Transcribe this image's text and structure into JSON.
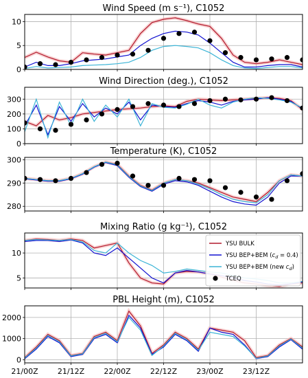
{
  "colors": {
    "bulk": "#b2182b",
    "bep04": "#1010d0",
    "bepnew": "#3bb4d6",
    "obs": "#000000",
    "shade": "#f4b6b6",
    "shade_obs": "#bdbdbd",
    "grid": "#b0b0b0"
  },
  "chart_data": [
    {
      "type": "line",
      "title": "Wind Speed (m s⁻¹), C1052",
      "xticklabels": [
        "21/00Z",
        "21/12Z",
        "22/00Z",
        "22/12Z",
        "23/00Z",
        "23/12Z"
      ],
      "xlim": [
        0,
        72
      ],
      "ylim": [
        0,
        11.5
      ],
      "yticks": [
        0,
        5,
        10
      ],
      "grid": true,
      "x": [
        0,
        3,
        6,
        9,
        12,
        15,
        18,
        21,
        24,
        27,
        30,
        33,
        36,
        39,
        42,
        45,
        48,
        51,
        54,
        57,
        60,
        63,
        66,
        69,
        72
      ],
      "series": [
        {
          "name": "YSU BULK",
          "color_key": "bulk",
          "values": [
            2.5,
            3.6,
            2.6,
            1.8,
            1.5,
            3.5,
            3.2,
            3.0,
            3.5,
            4.0,
            7.5,
            9.8,
            10.5,
            10.8,
            10.2,
            9.5,
            9.0,
            6.5,
            3.0,
            1.5,
            1.2,
            1.5,
            2.0,
            1.5,
            1.0
          ]
        },
        {
          "name": "YSU BEP+BEM (c_d = 0.4)",
          "color_key": "bep04",
          "values": [
            0.5,
            1.5,
            0.8,
            0.8,
            1.2,
            1.8,
            2.0,
            2.2,
            2.6,
            3.0,
            5.0,
            6.5,
            7.5,
            8.0,
            7.8,
            7.2,
            5.5,
            3.5,
            1.5,
            0.5,
            0.5,
            0.8,
            1.0,
            1.0,
            0.5
          ]
        },
        {
          "name": "YSU BEP+BEM (new c_d)",
          "color_key": "bepnew",
          "values": [
            0.2,
            0.6,
            0.3,
            0.4,
            0.5,
            0.8,
            0.9,
            1.0,
            1.2,
            1.5,
            2.5,
            4.0,
            4.8,
            5.0,
            4.8,
            4.5,
            3.5,
            2.0,
            0.8,
            0.3,
            0.2,
            0.4,
            0.6,
            0.6,
            0.3
          ]
        },
        {
          "name": "TCEQ",
          "color_key": "obs",
          "marker": "dot",
          "x": [
            0,
            4,
            8,
            12,
            16,
            20,
            24,
            28,
            32,
            36,
            40,
            44,
            48,
            52,
            56,
            60,
            64,
            68,
            72
          ],
          "values": [
            0.5,
            1.2,
            1.0,
            1.5,
            2.0,
            2.5,
            3.0,
            3.2,
            4.0,
            6.5,
            7.5,
            7.8,
            6.0,
            3.5,
            2.5,
            2.0,
            2.2,
            2.5,
            2.0
          ]
        }
      ]
    },
    {
      "type": "line",
      "title": "Wind Direction (deg.), C1052",
      "xticklabels": [
        "21/00Z",
        "21/12Z",
        "22/00Z",
        "22/12Z",
        "23/00Z",
        "23/12Z"
      ],
      "xlim": [
        0,
        72
      ],
      "ylim": [
        0,
        380
      ],
      "yticks": [
        0,
        100,
        200,
        300
      ],
      "grid": true,
      "x": [
        0,
        3,
        6,
        9,
        12,
        15,
        18,
        21,
        24,
        27,
        30,
        33,
        36,
        39,
        42,
        45,
        48,
        51,
        54,
        57,
        60,
        63,
        66,
        69,
        72
      ],
      "series": [
        {
          "name": "YSU BULK",
          "color_key": "bulk",
          "values": [
            150,
            120,
            190,
            160,
            175,
            200,
            210,
            220,
            230,
            235,
            240,
            250,
            255,
            250,
            285,
            300,
            295,
            290,
            295,
            300,
            305,
            310,
            305,
            290,
            230
          ]
        },
        {
          "name": "YSU BEP+BEM (c_d = 0.4)",
          "color_key": "bep04",
          "values": [
            120,
            260,
            60,
            250,
            150,
            270,
            180,
            240,
            200,
            280,
            160,
            260,
            250,
            245,
            270,
            290,
            280,
            260,
            285,
            295,
            300,
            310,
            300,
            285,
            235
          ]
        },
        {
          "name": "YSU BEP+BEM (new c_d)",
          "color_key": "bepnew",
          "values": [
            80,
            300,
            40,
            280,
            120,
            300,
            150,
            260,
            180,
            300,
            120,
            270,
            245,
            240,
            265,
            300,
            260,
            240,
            280,
            300,
            310,
            305,
            295,
            280,
            240
          ]
        },
        {
          "name": "TCEQ",
          "color_key": "obs",
          "marker": "dot",
          "x": [
            0,
            4,
            8,
            12,
            16,
            20,
            24,
            28,
            32,
            36,
            40,
            44,
            48,
            52,
            56,
            60,
            64,
            68,
            72
          ],
          "values": [
            140,
            100,
            90,
            130,
            160,
            200,
            230,
            250,
            270,
            260,
            250,
            270,
            290,
            300,
            295,
            300,
            310,
            290,
            240
          ]
        }
      ]
    },
    {
      "type": "line",
      "title": "Temperature (K), C1052",
      "xticklabels": [
        "21/00Z",
        "21/12Z",
        "22/00Z",
        "22/12Z",
        "23/00Z",
        "23/12Z"
      ],
      "xlim": [
        0,
        72
      ],
      "ylim": [
        278,
        301
      ],
      "yticks": [
        280,
        290,
        300
      ],
      "grid": true,
      "x": [
        0,
        3,
        6,
        9,
        12,
        15,
        18,
        21,
        24,
        27,
        30,
        33,
        36,
        39,
        42,
        45,
        48,
        51,
        54,
        57,
        60,
        63,
        66,
        69,
        72
      ],
      "series": [
        {
          "name": "YSU BULK",
          "color_key": "bulk",
          "values": [
            292,
            291.5,
            291,
            291,
            292,
            294,
            297,
            299,
            298,
            293,
            289,
            287,
            290,
            291.5,
            291,
            290,
            288,
            286,
            284,
            283,
            282,
            286,
            291,
            293.5,
            293
          ]
        },
        {
          "name": "YSU BEP+BEM (c_d = 0.4)",
          "color_key": "bep04",
          "values": [
            291.8,
            291.3,
            290.8,
            290.8,
            291.8,
            293.8,
            296.8,
            298.8,
            297.5,
            292.5,
            288.5,
            286.5,
            289.5,
            291,
            290.5,
            289,
            286.5,
            284,
            282,
            281,
            280.5,
            284,
            290,
            293,
            293
          ]
        },
        {
          "name": "YSU BEP+BEM (new c_d)",
          "color_key": "bepnew",
          "values": [
            292,
            291.5,
            291,
            291,
            292,
            294,
            297,
            299,
            297.8,
            292.8,
            288.8,
            286.8,
            290,
            291.5,
            291,
            289.5,
            287.5,
            285,
            283,
            282,
            281.5,
            285,
            291,
            293.5,
            293
          ]
        },
        {
          "name": "TCEQ",
          "color_key": "obs",
          "marker": "dot",
          "x": [
            0,
            4,
            8,
            12,
            16,
            20,
            24,
            28,
            32,
            36,
            40,
            44,
            48,
            52,
            56,
            60,
            64,
            68,
            72
          ],
          "values": [
            292,
            291.5,
            291,
            292,
            294.5,
            298,
            298.5,
            293,
            289,
            289,
            292,
            291.5,
            291,
            288,
            286,
            284,
            283,
            291,
            294
          ]
        }
      ]
    },
    {
      "type": "line",
      "title": "Mixing Ratio (g kg⁻¹), C1052",
      "xticklabels": [
        "21/00Z",
        "21/12Z",
        "22/00Z",
        "22/12Z",
        "23/00Z",
        "23/12Z"
      ],
      "xlim": [
        0,
        72
      ],
      "ylim": [
        3,
        14
      ],
      "yticks": [
        5,
        10
      ],
      "grid": true,
      "legend": "top-right",
      "x": [
        0,
        3,
        6,
        9,
        12,
        15,
        18,
        21,
        24,
        27,
        30,
        33,
        36,
        39,
        42,
        45,
        48,
        51,
        54,
        57,
        60,
        63,
        66,
        69,
        72
      ],
      "series": [
        {
          "name": "YSU BULK",
          "color_key": "bulk",
          "values": [
            12.5,
            12.8,
            12.7,
            12.5,
            12.8,
            12.5,
            11.0,
            11.5,
            12.0,
            8.0,
            5.0,
            4.0,
            3.8,
            6.0,
            6.3,
            6.2,
            5.8,
            5.2,
            4.5,
            4.0,
            3.8,
            3.5,
            3.3,
            3.8,
            4.0
          ]
        },
        {
          "name": "YSU BEP+BEM (c_d = 0.4)",
          "color_key": "bep04",
          "values": [
            12.3,
            12.5,
            12.5,
            12.3,
            12.6,
            12.0,
            10.0,
            9.5,
            11.0,
            9.0,
            7.0,
            5.0,
            4.0,
            6.0,
            6.5,
            6.2,
            5.8,
            5.5,
            5.0,
            4.5,
            4.2,
            3.8,
            3.6,
            3.8,
            4.2
          ]
        },
        {
          "name": "YSU BEP+BEM (new c_d)",
          "color_key": "bepnew",
          "values": [
            12.5,
            12.7,
            12.6,
            12.5,
            12.7,
            12.2,
            10.5,
            10.0,
            12.0,
            10.0,
            8.5,
            7.5,
            6.0,
            6.3,
            6.8,
            6.5,
            6.2,
            6.0,
            5.5,
            5.0,
            4.8,
            4.5,
            4.0,
            4.0,
            4.3
          ]
        }
      ],
      "legend_entries": [
        "YSU BULK",
        "YSU BEP+BEM ($c_d$ = 0.4)",
        "YSU BEP+BEM (new $c_d$)",
        "TCEQ"
      ]
    },
    {
      "type": "line",
      "title": "PBL Height (m), C1052",
      "xticklabels": [
        "21/00Z",
        "21/12Z",
        "22/00Z",
        "22/12Z",
        "23/00Z",
        "23/12Z"
      ],
      "xlim": [
        0,
        72
      ],
      "ylim": [
        -150,
        2550
      ],
      "yticks": [
        0,
        1000,
        2000
      ],
      "grid": true,
      "x": [
        0,
        3,
        6,
        9,
        12,
        15,
        18,
        21,
        24,
        27,
        30,
        33,
        36,
        39,
        42,
        45,
        48,
        51,
        54,
        57,
        60,
        63,
        66,
        69,
        72
      ],
      "series": [
        {
          "name": "YSU BULK",
          "color_key": "bulk",
          "values": [
            100,
            600,
            1200,
            900,
            200,
            300,
            1100,
            1300,
            900,
            2300,
            1600,
            300,
            700,
            1300,
            1000,
            500,
            1500,
            1400,
            1300,
            900,
            100,
            200,
            700,
            1000,
            600
          ]
        },
        {
          "name": "YSU BEP+BEM (c_d = 0.4)",
          "color_key": "bep04",
          "values": [
            50,
            500,
            1100,
            800,
            150,
            250,
            1000,
            1200,
            800,
            2100,
            1500,
            250,
            600,
            1200,
            900,
            400,
            1500,
            1300,
            1200,
            700,
            50,
            150,
            600,
            950,
            500
          ]
        },
        {
          "name": "YSU BEP+BEM (new c_d)",
          "color_key": "bepnew",
          "values": [
            80,
            550,
            1150,
            850,
            180,
            280,
            1050,
            1250,
            850,
            2000,
            1400,
            200,
            650,
            1250,
            950,
            450,
            1300,
            1200,
            1100,
            650,
            60,
            180,
            650,
            980,
            550
          ]
        }
      ]
    }
  ]
}
